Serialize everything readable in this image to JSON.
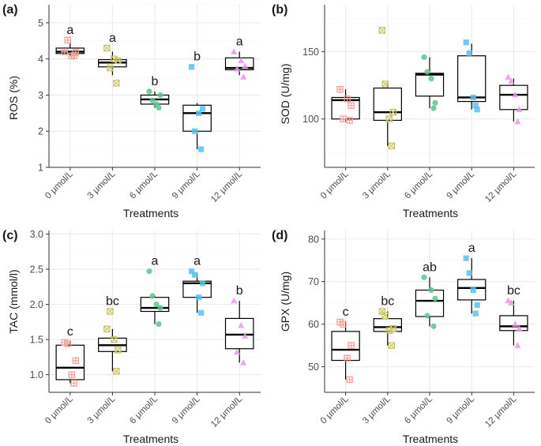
{
  "figure": {
    "xlabel": "Treatments"
  },
  "chart_data": [
    {
      "type": "boxplot",
      "panel": "(a)",
      "ylabel": "ROS (%)",
      "xlabel": "Treatments",
      "categories": [
        "0 μmol/L",
        "3 μmol/L",
        "6 μmol/L",
        "9 μmol/L",
        "12 μmol/L"
      ],
      "ylim": [
        1,
        5.5
      ],
      "yticks": [
        1,
        2,
        3,
        4,
        5
      ],
      "boxes": [
        {
          "min": 4.1,
          "q1": 4.15,
          "median": 4.2,
          "q3": 4.3,
          "max": 4.45
        },
        {
          "min": 3.55,
          "q1": 3.78,
          "median": 3.9,
          "q3": 3.98,
          "max": 4.2
        },
        {
          "min": 2.65,
          "q1": 2.75,
          "median": 2.88,
          "q3": 3.0,
          "max": 3.1
        },
        {
          "min": 1.5,
          "q1": 2.0,
          "median": 2.5,
          "q3": 2.72,
          "max": 2.78
        },
        {
          "min": 3.55,
          "q1": 3.7,
          "median": 3.75,
          "q3": 4.03,
          "max": 4.2
        }
      ],
      "points": [
        [
          4.2,
          4.1,
          4.52,
          4.18,
          4.08
        ],
        [
          4.3,
          3.33,
          3.75,
          3.95,
          4.0
        ],
        [
          3.1,
          2.65,
          2.85,
          3.0,
          2.75
        ],
        [
          3.78,
          1.5,
          2.0,
          2.62,
          2.5
        ],
        [
          4.2,
          3.5,
          3.72,
          3.8,
          3.95
        ]
      ],
      "letters": [
        "a",
        "a",
        "b",
        "b",
        "a"
      ]
    },
    {
      "type": "boxplot",
      "panel": "(b)",
      "ylabel": "SOD (U/mg)",
      "xlabel": "Treatments",
      "categories": [
        "0 μmol/L",
        "3 μmol/L",
        "6 μmol/L",
        "9 μmol/L",
        "12 μmol/L"
      ],
      "ylim": [
        64,
        185
      ],
      "yticks": [
        100,
        150
      ],
      "boxes": [
        {
          "min": 98,
          "q1": 100,
          "median": 114,
          "q3": 116,
          "max": 122
        },
        {
          "min": 80,
          "q1": 99,
          "median": 105,
          "q3": 123,
          "max": 126
        },
        {
          "min": 108,
          "q1": 117,
          "median": 133,
          "q3": 134,
          "max": 146
        },
        {
          "min": 107,
          "q1": 113,
          "median": 116,
          "q3": 147,
          "max": 156
        },
        {
          "min": 98,
          "q1": 107,
          "median": 118,
          "q3": 125,
          "max": 130
        }
      ],
      "points": [
        [
          122,
          99,
          100,
          110,
          115
        ],
        [
          166,
          80,
          126,
          105,
          100
        ],
        [
          146,
          108,
          135,
          112,
          130
        ],
        [
          157,
          110,
          149,
          107,
          116
        ],
        [
          131,
          98,
          128,
          107,
          118
        ]
      ],
      "letters": []
    },
    {
      "type": "boxplot",
      "panel": "(c)",
      "ylabel": "TAC (mmol/l)",
      "xlabel": "Treatments",
      "categories": [
        "0 μmol/L",
        "3 μmol/L",
        "6 μmol/L",
        "9 μmol/L",
        "12 μmol/L"
      ],
      "ylim": [
        0.75,
        3.05
      ],
      "yticks": [
        1.0,
        1.5,
        2.0,
        2.5,
        3.0
      ],
      "boxes": [
        {
          "min": 0.88,
          "q1": 0.93,
          "median": 1.1,
          "q3": 1.42,
          "max": 1.47
        },
        {
          "min": 1.05,
          "q1": 1.33,
          "median": 1.42,
          "q3": 1.52,
          "max": 1.65
        },
        {
          "min": 1.72,
          "q1": 1.9,
          "median": 1.95,
          "q3": 2.1,
          "max": 2.12
        },
        {
          "min": 1.88,
          "q1": 2.1,
          "median": 2.3,
          "q3": 2.33,
          "max": 2.45
        },
        {
          "min": 1.17,
          "q1": 1.37,
          "median": 1.57,
          "q3": 1.8,
          "max": 2.05
        }
      ],
      "points": [
        [
          1.46,
          0.88,
          1.44,
          1.2,
          1.0
        ],
        [
          1.65,
          1.05,
          1.9,
          1.35,
          1.5
        ],
        [
          2.47,
          1.72,
          2.12,
          1.95,
          2.0
        ],
        [
          2.47,
          1.88,
          2.42,
          2.3,
          2.1
        ],
        [
          2.05,
          1.17,
          1.32,
          1.55,
          1.7
        ]
      ],
      "letters": [
        "c",
        "bc",
        "a",
        "a",
        "b"
      ]
    },
    {
      "type": "boxplot",
      "panel": "(d)",
      "ylabel": "GPX (U/mg)",
      "xlabel": "Treatments",
      "categories": [
        "0 μmol/L",
        "3 μmol/L",
        "6 μmol/L",
        "9 μmol/L",
        "12 μmol/L"
      ],
      "ylim": [
        44,
        82
      ],
      "yticks": [
        50,
        60,
        70,
        80
      ],
      "boxes": [
        {
          "min": 47,
          "q1": 51.5,
          "median": 54,
          "q3": 58.3,
          "max": 60.5
        },
        {
          "min": 55,
          "q1": 58.3,
          "median": 59.3,
          "q3": 61.3,
          "max": 63
        },
        {
          "min": 59.5,
          "q1": 61.8,
          "median": 65.5,
          "q3": 68,
          "max": 71
        },
        {
          "min": 62.5,
          "q1": 65.7,
          "median": 68.5,
          "q3": 70.5,
          "max": 75.5
        },
        {
          "min": 55,
          "q1": 58.5,
          "median": 59.5,
          "q3": 62,
          "max": 65.5
        }
      ],
      "points": [
        [
          60.5,
          47,
          60,
          55,
          52
        ],
        [
          63,
          55,
          62,
          59,
          58.5
        ],
        [
          71,
          59.5,
          62,
          66,
          68
        ],
        [
          75.5,
          62.5,
          72,
          64.5,
          68
        ],
        [
          65.5,
          55,
          65,
          59,
          60
        ]
      ],
      "letters": [
        "c",
        "bc",
        "ab",
        "a",
        "bc"
      ]
    }
  ],
  "colors": {
    "groups": [
      "#f4a09b",
      "#c9c46a",
      "#5cc58e",
      "#56c2ee",
      "#e69ae6"
    ],
    "grid_major": "#ebebeb",
    "grid_minor": "#f5f5f5",
    "panel_border": "#333333",
    "box_line": "#000000"
  },
  "point_shapes": [
    "square-cross",
    "square-x",
    "circle",
    "square",
    "triangle"
  ]
}
